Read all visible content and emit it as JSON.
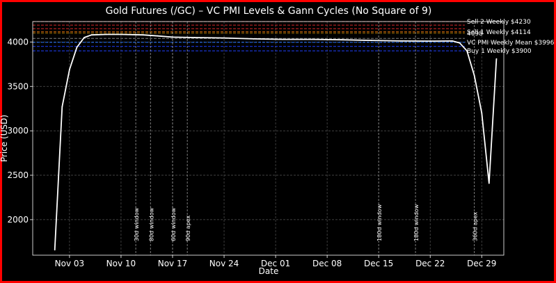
{
  "chart_data": {
    "type": "line",
    "title": "Gold Futures (/GC) – VC PMI Levels & Gann Cycles (No Square of 9)",
    "xlabel": "Date",
    "ylabel": "Price (USD)",
    "xlim": [
      "2025-10-29",
      "2026-01-01"
    ],
    "ylim": [
      1600,
      4230
    ],
    "grid": true,
    "x_ticks": [
      {
        "date": "2025-11-03",
        "label": "Nov 03"
      },
      {
        "date": "2025-11-10",
        "label": "Nov 10"
      },
      {
        "date": "2025-11-17",
        "label": "Nov 17"
      },
      {
        "date": "2025-11-24",
        "label": "Nov 24"
      },
      {
        "date": "2025-12-01",
        "label": "Dec 01"
      },
      {
        "date": "2025-12-08",
        "label": "Dec 08"
      },
      {
        "date": "2025-12-15",
        "label": "Dec 15"
      },
      {
        "date": "2025-12-22",
        "label": "Dec 22"
      },
      {
        "date": "2025-12-29",
        "label": "Dec 29"
      }
    ],
    "y_ticks": [
      {
        "value": 2000,
        "label": "2000"
      },
      {
        "value": 2500,
        "label": "2500"
      },
      {
        "value": 3000,
        "label": "3000"
      },
      {
        "value": 3500,
        "label": "3500"
      },
      {
        "value": 4000,
        "label": "4000"
      }
    ],
    "series": [
      {
        "color": "#ffffff",
        "points": [
          {
            "x": "2025-11-01",
            "y": 1660
          },
          {
            "x": "2025-11-02",
            "y": 3270
          },
          {
            "x": "2025-11-03",
            "y": 3690
          },
          {
            "x": "2025-11-04",
            "y": 3940
          },
          {
            "x": "2025-11-05",
            "y": 4050
          },
          {
            "x": "2025-11-06",
            "y": 4080
          },
          {
            "x": "2025-11-08",
            "y": 4085
          },
          {
            "x": "2025-11-10",
            "y": 4085
          },
          {
            "x": "2025-11-13",
            "y": 4080
          },
          {
            "x": "2025-11-15",
            "y": 4068
          },
          {
            "x": "2025-11-17",
            "y": 4055
          },
          {
            "x": "2025-11-20",
            "y": 4050
          },
          {
            "x": "2025-11-24",
            "y": 4045
          },
          {
            "x": "2025-11-28",
            "y": 4035
          },
          {
            "x": "2025-12-02",
            "y": 4030
          },
          {
            "x": "2025-12-06",
            "y": 4030
          },
          {
            "x": "2025-12-10",
            "y": 4025
          },
          {
            "x": "2025-12-14",
            "y": 4018
          },
          {
            "x": "2025-12-18",
            "y": 4012
          },
          {
            "x": "2025-12-22",
            "y": 4010
          },
          {
            "x": "2025-12-25",
            "y": 4012
          },
          {
            "x": "2025-12-26",
            "y": 3990
          },
          {
            "x": "2025-12-27",
            "y": 3900
          },
          {
            "x": "2025-12-28",
            "y": 3620
          },
          {
            "x": "2025-12-29",
            "y": 3200
          },
          {
            "x": "2025-12-30",
            "y": 2410
          },
          {
            "x": "2025-12-31",
            "y": 3810
          }
        ]
      }
    ],
    "levels": [
      {
        "value": 4230,
        "color": "#d62728",
        "label": "Sell 2 Weekly $4230",
        "show": true
      },
      {
        "value": 4190,
        "color": "#d62728",
        "label": "",
        "show": false
      },
      {
        "value": 4150,
        "color": "#d62728",
        "label": "",
        "show": false
      },
      {
        "value": 4114,
        "color": "#ff7f0e",
        "label": "Sell 1 Weekly $4114",
        "show": true
      },
      {
        "value": 4098,
        "color": "#8a6a00",
        "label": "4098",
        "show": true
      },
      {
        "value": 4040,
        "color": "#7f7f7f",
        "label": "",
        "show": false
      },
      {
        "value": 3996,
        "color": "#1f6fff",
        "label": "VC PMI Weekly Mean $3996",
        "show": true
      },
      {
        "value": 3950,
        "color": "#1f3fff",
        "label": "",
        "show": false
      },
      {
        "value": 3900,
        "color": "#1f3fff",
        "label": "Buy 1 Weekly $3900",
        "show": true
      }
    ],
    "cycles": [
      {
        "date": "2025-11-12",
        "label": "30d window"
      },
      {
        "date": "2025-11-14",
        "label": "80d window"
      },
      {
        "date": "2025-11-17",
        "label": "60d window"
      },
      {
        "date": "2025-11-19",
        "label": "90d apex"
      },
      {
        "date": "2025-12-15",
        "label": "180d window"
      },
      {
        "date": "2025-12-20",
        "label": "180d window"
      },
      {
        "date": "2025-12-28",
        "label": "360d apex"
      }
    ]
  }
}
